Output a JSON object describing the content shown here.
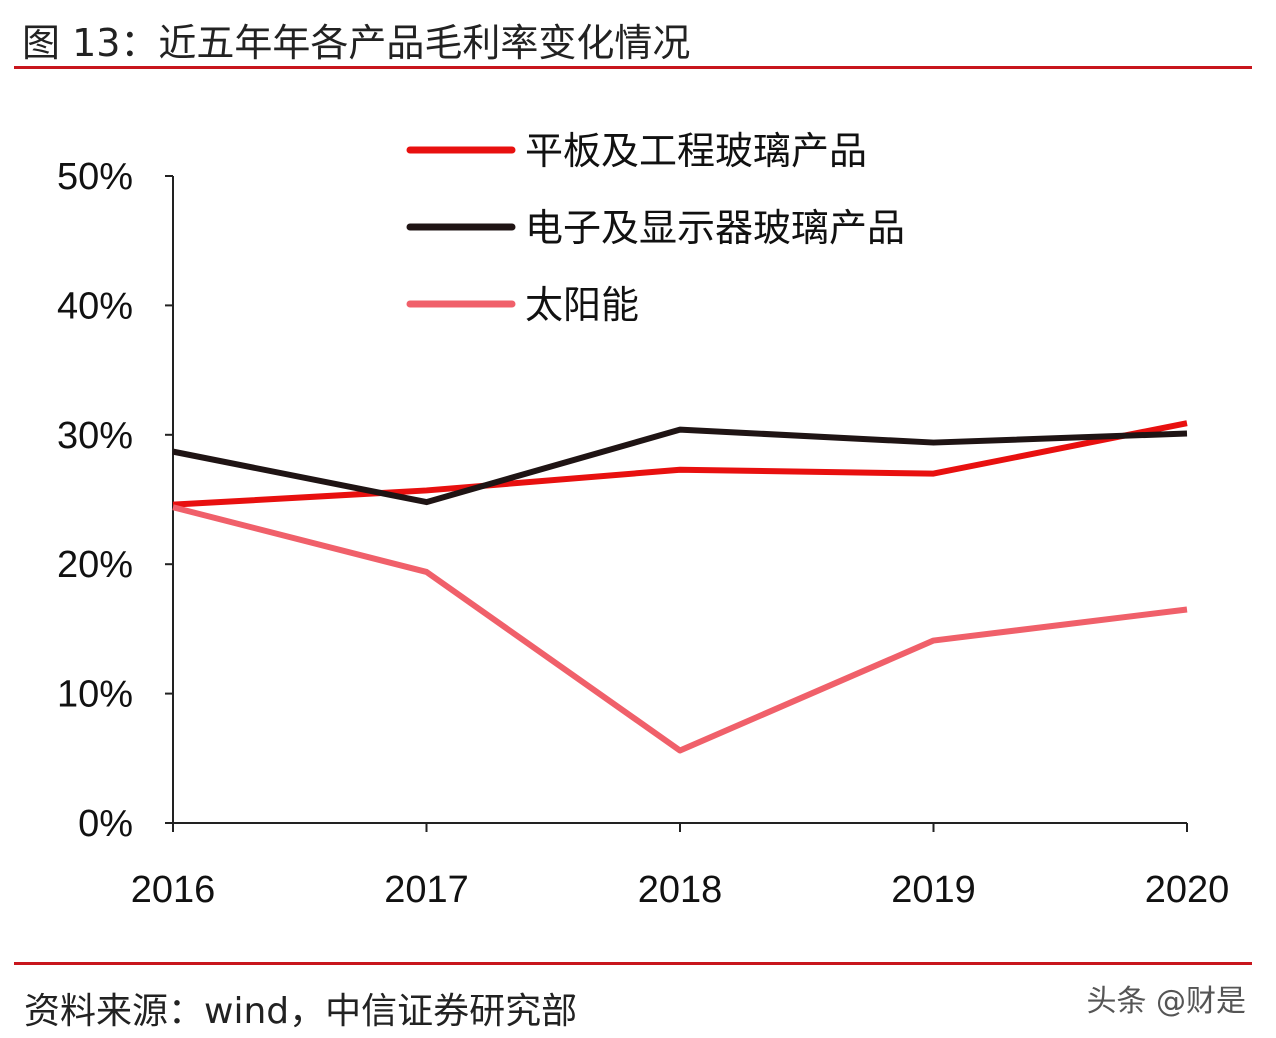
{
  "header": {
    "title": "图 13：近五年年各产品毛利率变化情况"
  },
  "footer": {
    "source": "资料来源：wind，中信证券研究部",
    "watermark": "头条 @财是"
  },
  "colors": {
    "rule": "#c8161d"
  },
  "chart_data": {
    "type": "line",
    "title": "图 13：近五年年各产品毛利率变化情况",
    "xlabel": "",
    "ylabel": "",
    "categories": [
      "2016",
      "2017",
      "2018",
      "2019",
      "2020"
    ],
    "ylim": [
      0,
      50
    ],
    "yticks": [
      "0%",
      "10%",
      "20%",
      "30%",
      "40%",
      "50%"
    ],
    "grid": false,
    "legend_position": "top",
    "series": [
      {
        "name": "平板及工程玻璃产品",
        "color": "#e8100f",
        "values": [
          24.6,
          25.7,
          27.3,
          27.0,
          30.9
        ]
      },
      {
        "name": "电子及显示器玻璃产品",
        "color": "#1f1414",
        "values": [
          28.7,
          24.8,
          30.4,
          29.4,
          30.1
        ]
      },
      {
        "name": "太阳能",
        "color": "#f0606a",
        "values": [
          24.4,
          19.4,
          5.6,
          14.1,
          16.5
        ]
      }
    ]
  }
}
